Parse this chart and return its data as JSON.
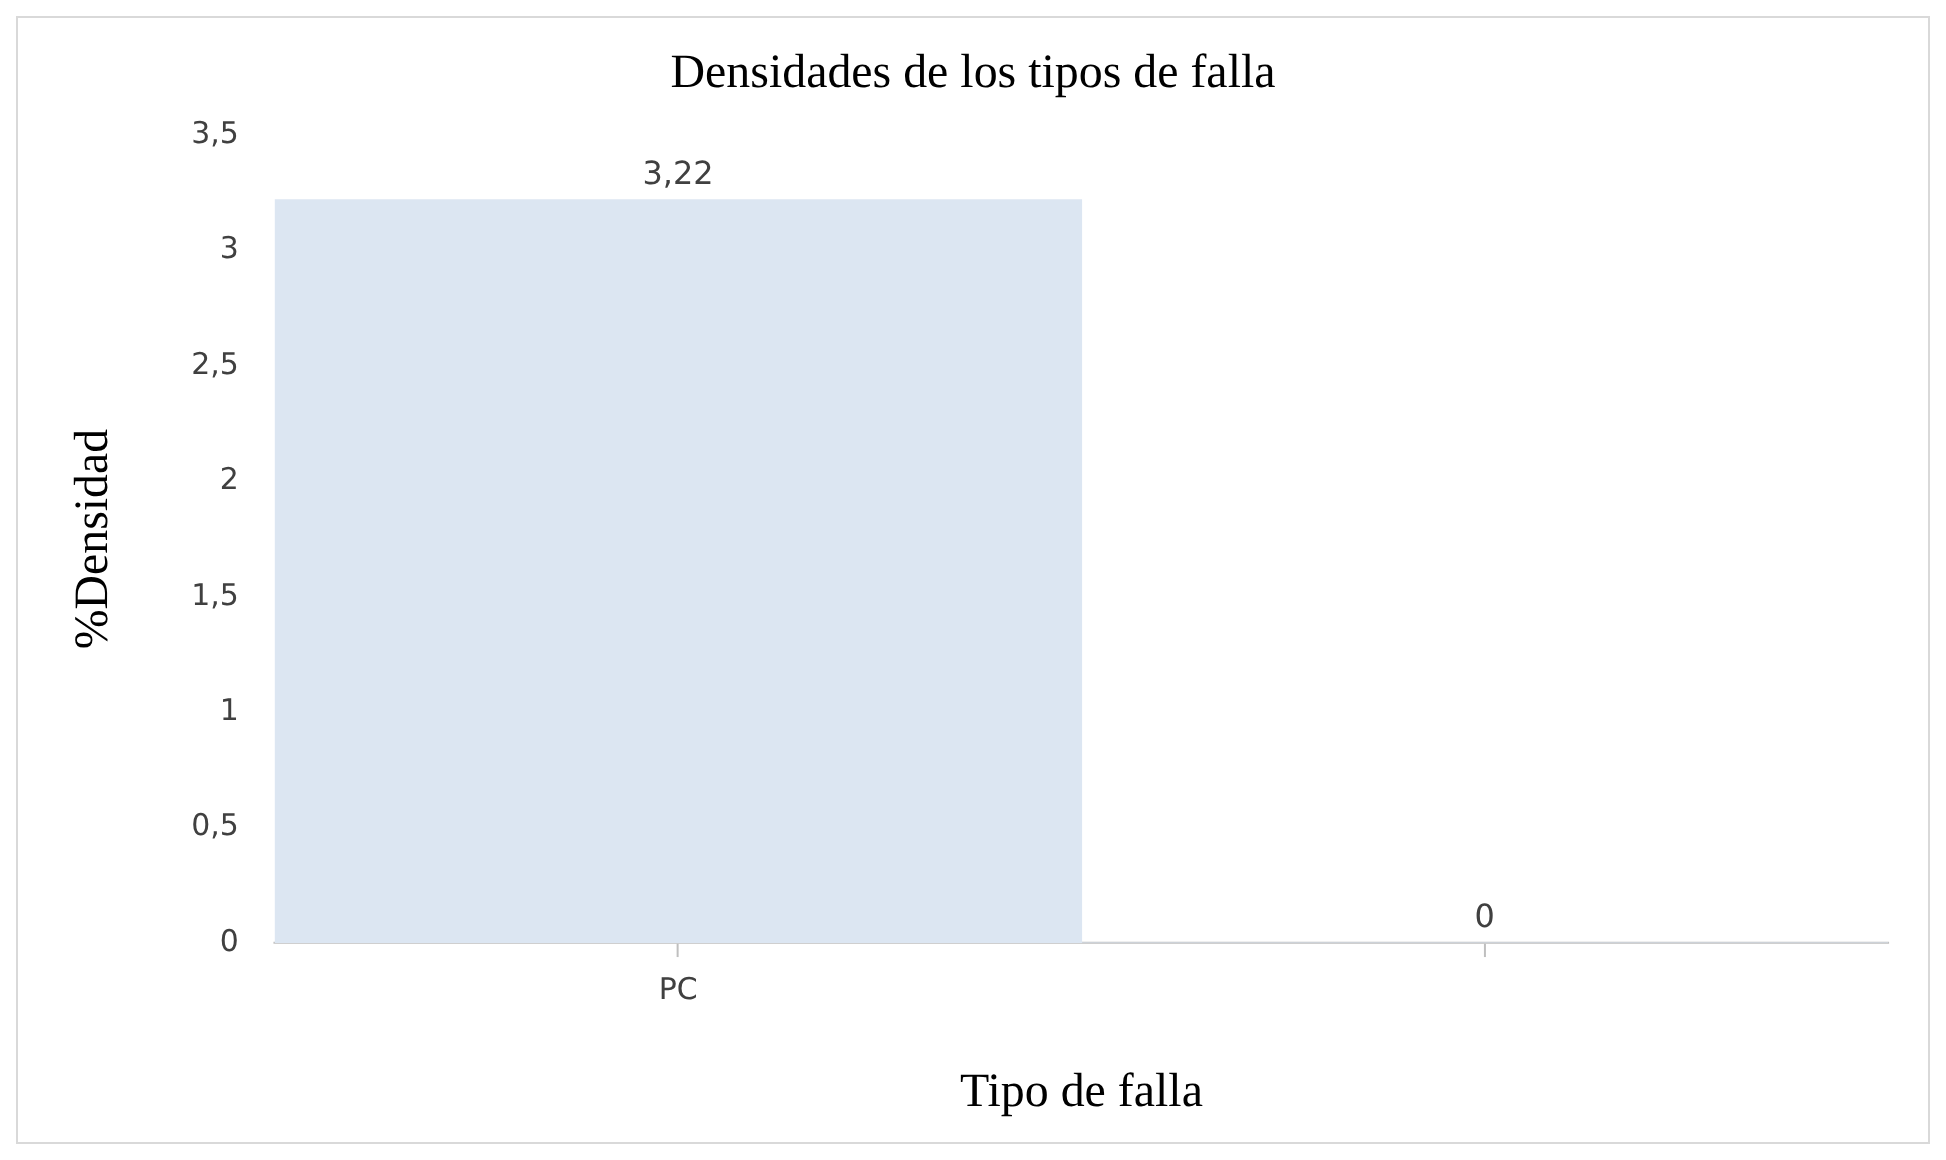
{
  "chart_data": {
    "type": "bar",
    "title": "Densidades de los tipos de falla",
    "xlabel": "Tipo de falla",
    "ylabel": "%Densidad",
    "categories": [
      "PC",
      null
    ],
    "values": [
      3.22,
      0
    ],
    "color": "#dce6f2",
    "value_labels": [
      "3,22",
      "0"
    ],
    "ylim": [
      0,
      3.5
    ],
    "yticks": [
      0,
      {
        "value": 0.5,
        "label": "0,5"
      },
      1,
      {
        "value": 1.5,
        "label": "1,5"
      },
      2,
      {
        "value": 2.5,
        "label": "2,5"
      },
      3,
      {
        "value": 3.5,
        "label": "3,5"
      }
    ],
    "grid": false,
    "legend": false
  }
}
